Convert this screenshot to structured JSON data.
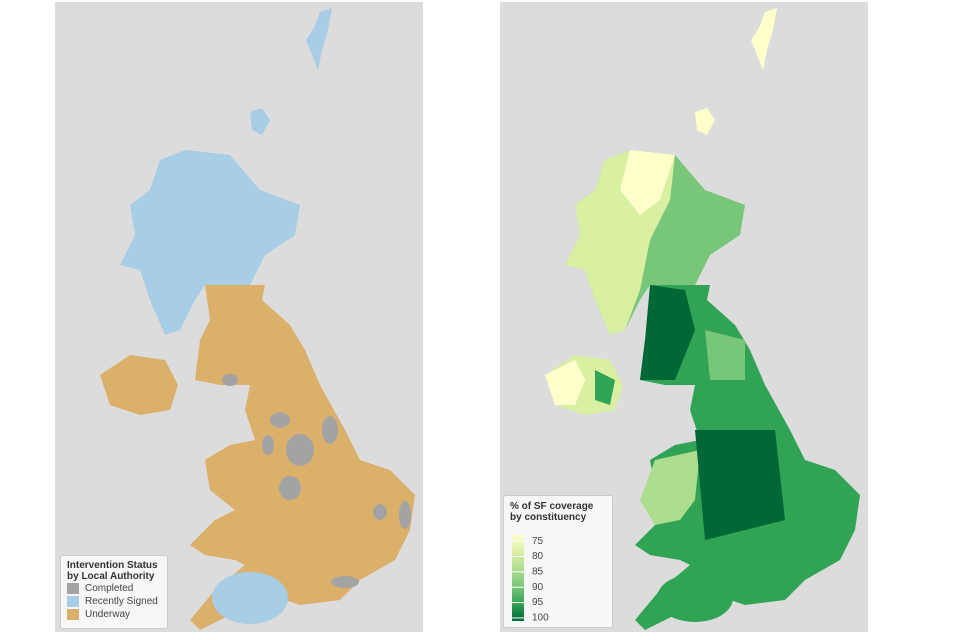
{
  "maps": [
    {
      "legend": {
        "title": "Intervention Status by Local Authority",
        "items": [
          {
            "label": "Completed",
            "color": "#a3a3a3"
          },
          {
            "label": "Recently Signed",
            "color": "#a8cde6"
          },
          {
            "label": "Underway",
            "color": "#dbb06b"
          }
        ]
      }
    },
    {
      "legend": {
        "title": "% of SF coverage by constituency",
        "range": [
          73,
          101
        ],
        "ticks": [
          75,
          80,
          85,
          90,
          95,
          100
        ],
        "colors": [
          "#ffffcc",
          "#d9f0a3",
          "#addd8e",
          "#78c679",
          "#31a354",
          "#006837"
        ]
      }
    }
  ]
}
